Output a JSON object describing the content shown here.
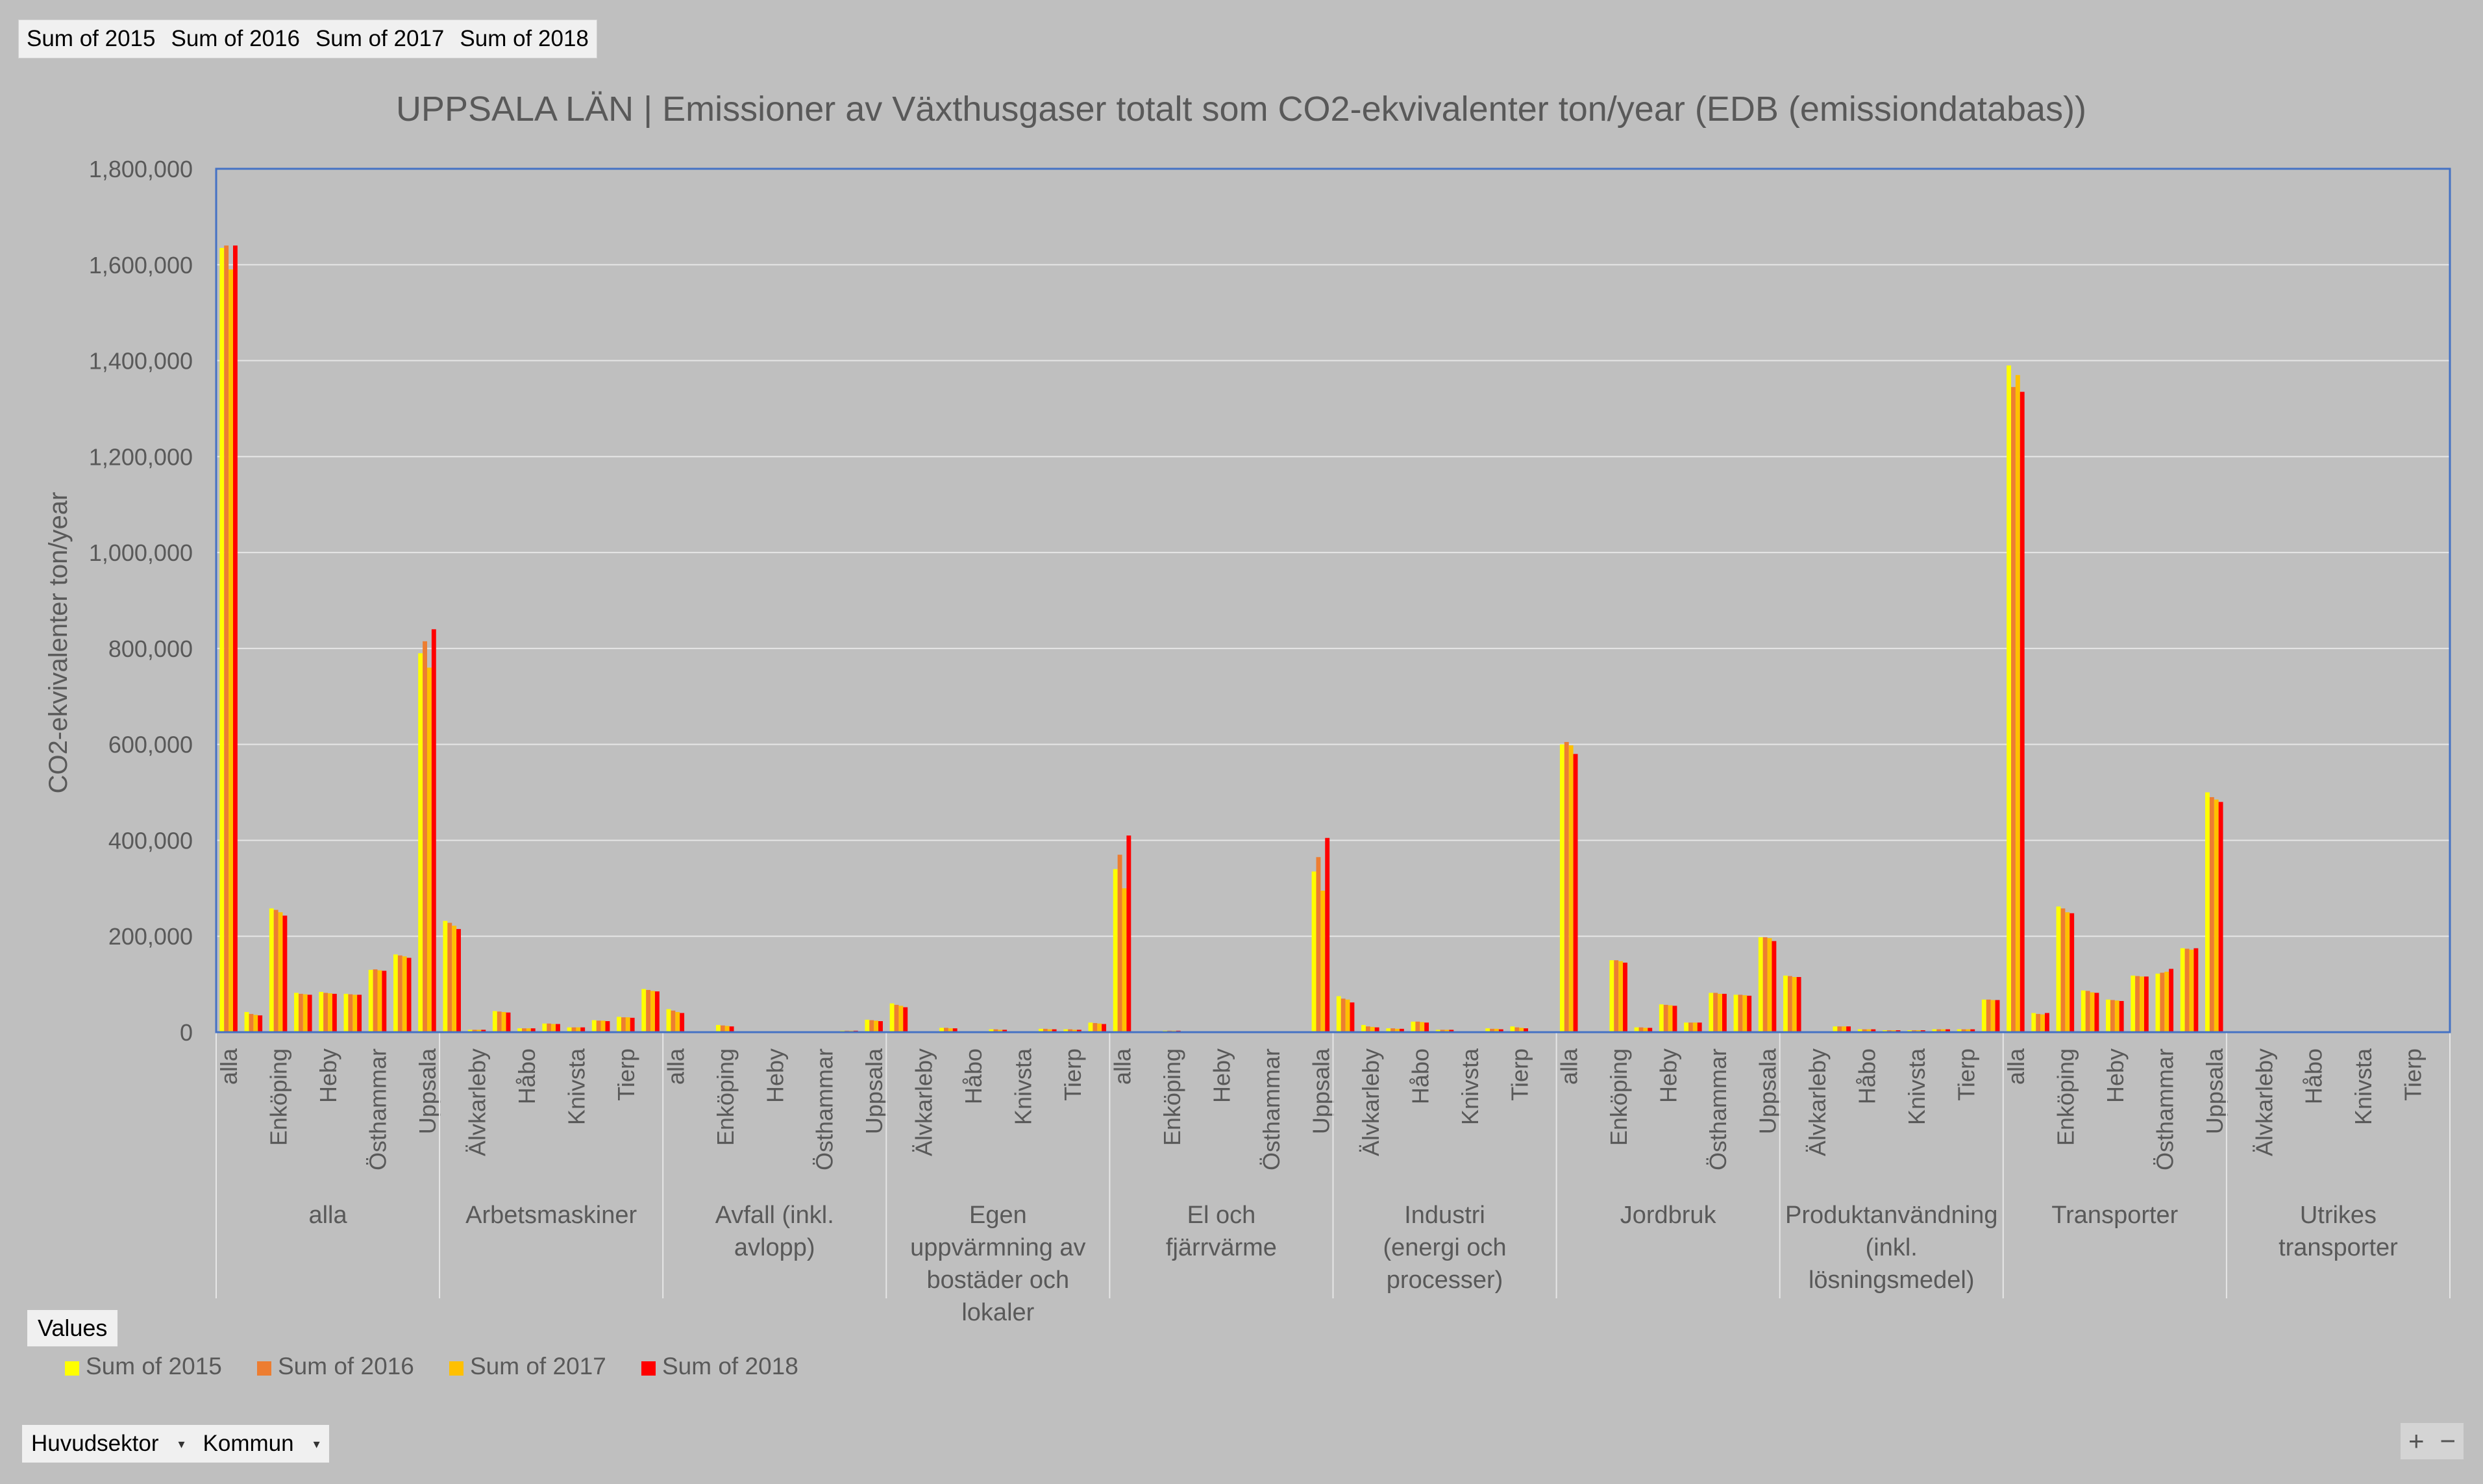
{
  "field_buttons": [
    "Sum of 2015",
    "Sum of 2016",
    "Sum of 2017",
    "Sum of 2018"
  ],
  "values_button": "Values",
  "axis_buttons": [
    {
      "label": "Huvudsektor",
      "dropdown": "▾"
    },
    {
      "label": "Kommun",
      "dropdown": "▾"
    }
  ],
  "zoom_controls": {
    "zoom_in": "+",
    "zoom_out": "−"
  },
  "chart_data": {
    "type": "bar",
    "title": "UPPSALA LÄN | Emissioner av Växthusgaser totalt som CO2-ekvivalenter ton/year (EDB (emissiondatabas))",
    "ylabel": "CO2-ekvivalenter ton/year",
    "xlabel": "",
    "ylim": [
      0,
      1800000
    ],
    "yticks": [
      "0",
      "200,000",
      "400,000",
      "600,000",
      "800,000",
      "1,000,000",
      "1,200,000",
      "1,400,000",
      "1,600,000",
      "1,800,000"
    ],
    "grid": true,
    "legend": "bottom-left",
    "colors": {
      "background": "#bfbfbf",
      "grid": "#e6e6e6",
      "axis_frame": "#4472c4",
      "text": "#595959"
    },
    "series": [
      {
        "name": "Sum of 2015",
        "color": "#ffff00"
      },
      {
        "name": "Sum of 2016",
        "color": "#ed7d31"
      },
      {
        "name": "Sum of 2017",
        "color": "#ffc000"
      },
      {
        "name": "Sum of 2018",
        "color": "#ff0000"
      }
    ],
    "groups": [
      {
        "label": "alla",
        "categories": [
          {
            "label": "alla",
            "values": [
              1635000,
              1640000,
              1590000,
              1640000
            ]
          },
          {
            "label": "",
            "values": [
              42000,
              38000,
              36000,
              35000
            ]
          },
          {
            "label": "Enköping",
            "values": [
              258000,
              255000,
              250000,
              243000
            ]
          },
          {
            "label": "",
            "values": [
              82000,
              80000,
              79000,
              78000
            ]
          },
          {
            "label": "Heby",
            "values": [
              84000,
              82000,
              81000,
              80000
            ]
          },
          {
            "label": "",
            "values": [
              80000,
              79000,
              78000,
              78000
            ]
          },
          {
            "label": "Östhammar",
            "values": [
              130000,
              131000,
              129000,
              128000
            ]
          },
          {
            "label": "",
            "values": [
              162000,
              160000,
              158000,
              155000
            ]
          },
          {
            "label": "Uppsala",
            "values": [
              790000,
              815000,
              760000,
              840000
            ]
          }
        ]
      },
      {
        "label": "Arbetsmaskiner",
        "categories": [
          {
            "label": "",
            "values": [
              232000,
              228000,
              222000,
              215000
            ]
          },
          {
            "label": "Älvkarleby",
            "values": [
              5000,
              5000,
              5000,
              5000
            ]
          },
          {
            "label": "",
            "values": [
              44000,
              43000,
              42000,
              41000
            ]
          },
          {
            "label": "Håbo",
            "values": [
              8000,
              8000,
              8000,
              8000
            ]
          },
          {
            "label": "",
            "values": [
              18000,
              18000,
              17000,
              17000
            ]
          },
          {
            "label": "Knivsta",
            "values": [
              10000,
              10000,
              10000,
              10000
            ]
          },
          {
            "label": "",
            "values": [
              25000,
              24000,
              24000,
              23000
            ]
          },
          {
            "label": "Tierp",
            "values": [
              32000,
              31000,
              31000,
              30000
            ]
          },
          {
            "label": "",
            "values": [
              90000,
              88000,
              86000,
              85000
            ]
          }
        ]
      },
      {
        "label": "Avfall (inkl. avlopp)",
        "categories": [
          {
            "label": "alla",
            "values": [
              48000,
              45000,
              42000,
              40000
            ]
          },
          {
            "label": "",
            "values": [
              1000,
              1000,
              1000,
              1000
            ]
          },
          {
            "label": "Enköping",
            "values": [
              15000,
              14000,
              13000,
              12000
            ]
          },
          {
            "label": "",
            "values": [
              0,
              0,
              0,
              0
            ]
          },
          {
            "label": "Heby",
            "values": [
              0,
              0,
              0,
              0
            ]
          },
          {
            "label": "",
            "values": [
              0,
              0,
              0,
              0
            ]
          },
          {
            "label": "Östhammar",
            "values": [
              1000,
              1000,
              1000,
              1000
            ]
          },
          {
            "label": "",
            "values": [
              3000,
              3000,
              3000,
              3000
            ]
          },
          {
            "label": "Uppsala",
            "values": [
              26000,
              25000,
              24000,
              23000
            ]
          }
        ]
      },
      {
        "label": "Egen uppvärmning av bostäder och lokaler",
        "categories": [
          {
            "label": "",
            "values": [
              60000,
              57000,
              55000,
              52000
            ]
          },
          {
            "label": "Älvkarleby",
            "values": [
              1000,
              1000,
              1000,
              1000
            ]
          },
          {
            "label": "",
            "values": [
              9000,
              9000,
              8000,
              8000
            ]
          },
          {
            "label": "Håbo",
            "values": [
              2000,
              2000,
              2000,
              2000
            ]
          },
          {
            "label": "",
            "values": [
              6000,
              6000,
              5000,
              5000
            ]
          },
          {
            "label": "Knivsta",
            "values": [
              2000,
              2000,
              2000,
              2000
            ]
          },
          {
            "label": "",
            "values": [
              7000,
              7000,
              6000,
              6000
            ]
          },
          {
            "label": "Tierp",
            "values": [
              6000,
              6000,
              5000,
              5000
            ]
          },
          {
            "label": "",
            "values": [
              20000,
              19000,
              18000,
              17000
            ]
          }
        ]
      },
      {
        "label": "El och fjärrvärme",
        "categories": [
          {
            "label": "alla",
            "values": [
              340000,
              370000,
              300000,
              410000
            ]
          },
          {
            "label": "",
            "values": [
              0,
              0,
              0,
              0
            ]
          },
          {
            "label": "Enköping",
            "values": [
              3000,
              3000,
              3000,
              3000
            ]
          },
          {
            "label": "",
            "values": [
              0,
              0,
              0,
              0
            ]
          },
          {
            "label": "Heby",
            "values": [
              0,
              0,
              0,
              0
            ]
          },
          {
            "label": "",
            "values": [
              0,
              0,
              0,
              0
            ]
          },
          {
            "label": "Östhammar",
            "values": [
              0,
              0,
              0,
              0
            ]
          },
          {
            "label": "",
            "values": [
              0,
              0,
              0,
              0
            ]
          },
          {
            "label": "Uppsala",
            "values": [
              335000,
              365000,
              295000,
              405000
            ]
          }
        ]
      },
      {
        "label": "Industri (energi och processer)",
        "categories": [
          {
            "label": "",
            "values": [
              75000,
              70000,
              68000,
              62000
            ]
          },
          {
            "label": "Älvkarleby",
            "values": [
              15000,
              12000,
              11000,
              10000
            ]
          },
          {
            "label": "",
            "values": [
              8000,
              8000,
              7000,
              7000
            ]
          },
          {
            "label": "Håbo",
            "values": [
              22000,
              22000,
              21000,
              20000
            ]
          },
          {
            "label": "",
            "values": [
              5000,
              5000,
              5000,
              5000
            ]
          },
          {
            "label": "Knivsta",
            "values": [
              1000,
              1000,
              1000,
              1000
            ]
          },
          {
            "label": "",
            "values": [
              8000,
              7000,
              7000,
              6000
            ]
          },
          {
            "label": "Tierp",
            "values": [
              12000,
              10000,
              9000,
              8000
            ]
          },
          {
            "label": "",
            "values": [
              0,
              0,
              0,
              0
            ]
          }
        ]
      },
      {
        "label": "Jordbruk",
        "categories": [
          {
            "label": "alla",
            "values": [
              600000,
              605000,
              598000,
              580000
            ]
          },
          {
            "label": "",
            "values": [
              0,
              0,
              0,
              0
            ]
          },
          {
            "label": "Enköping",
            "values": [
              150000,
              150000,
              148000,
              145000
            ]
          },
          {
            "label": "",
            "values": [
              10000,
              10000,
              9000,
              9000
            ]
          },
          {
            "label": "Heby",
            "values": [
              58000,
              57000,
              56000,
              55000
            ]
          },
          {
            "label": "",
            "values": [
              20000,
              20000,
              20000,
              20000
            ]
          },
          {
            "label": "Östhammar",
            "values": [
              82000,
              82000,
              80000,
              80000
            ]
          },
          {
            "label": "",
            "values": [
              78000,
              78000,
              77000,
              76000
            ]
          },
          {
            "label": "Uppsala",
            "values": [
              198000,
              198000,
              196000,
              190000
            ]
          }
        ]
      },
      {
        "label": "Produktanvändning (inkl. lösningsmedel)",
        "categories": [
          {
            "label": "",
            "values": [
              118000,
              117000,
              115000,
              115000
            ]
          },
          {
            "label": "Älvkarleby",
            "values": [
              2000,
              2000,
              2000,
              2000
            ]
          },
          {
            "label": "",
            "values": [
              12000,
              12000,
              12000,
              12000
            ]
          },
          {
            "label": "Håbo",
            "values": [
              6000,
              6000,
              6000,
              6000
            ]
          },
          {
            "label": "",
            "values": [
              4000,
              4000,
              4000,
              4000
            ]
          },
          {
            "label": "Knivsta",
            "values": [
              4000,
              4000,
              4000,
              4000
            ]
          },
          {
            "label": "",
            "values": [
              6000,
              6000,
              6000,
              6000
            ]
          },
          {
            "label": "Tierp",
            "values": [
              6000,
              6000,
              6000,
              6000
            ]
          },
          {
            "label": "",
            "values": [
              68000,
              68000,
              67000,
              67000
            ]
          }
        ]
      },
      {
        "label": "Transporter",
        "categories": [
          {
            "label": "alla",
            "values": [
              1390000,
              1345000,
              1370000,
              1335000
            ]
          },
          {
            "label": "",
            "values": [
              40000,
              38000,
              37000,
              40000
            ]
          },
          {
            "label": "Enköping",
            "values": [
              262000,
              258000,
              250000,
              248000
            ]
          },
          {
            "label": "",
            "values": [
              87000,
              86000,
              83000,
              82000
            ]
          },
          {
            "label": "Heby",
            "values": [
              68000,
              67000,
              66000,
              65000
            ]
          },
          {
            "label": "",
            "values": [
              118000,
              117000,
              116000,
              116000
            ]
          },
          {
            "label": "Östhammar",
            "values": [
              122000,
              124000,
              126000,
              132000
            ]
          },
          {
            "label": "",
            "values": [
              175000,
              174000,
              172000,
              175000
            ]
          },
          {
            "label": "Uppsala",
            "values": [
              500000,
              490000,
              485000,
              480000
            ]
          }
        ]
      },
      {
        "label": "Utrikes transporter",
        "categories": [
          {
            "label": "",
            "values": [
              0,
              0,
              0,
              0
            ]
          },
          {
            "label": "Älvkarleby",
            "values": [
              0,
              0,
              0,
              0
            ]
          },
          {
            "label": "",
            "values": [
              0,
              0,
              0,
              0
            ]
          },
          {
            "label": "Håbo",
            "values": [
              0,
              0,
              0,
              0
            ]
          },
          {
            "label": "",
            "values": [
              0,
              0,
              0,
              0
            ]
          },
          {
            "label": "Knivsta",
            "values": [
              0,
              0,
              0,
              0
            ]
          },
          {
            "label": "",
            "values": [
              0,
              0,
              0,
              0
            ]
          },
          {
            "label": "Tierp",
            "values": [
              0,
              0,
              0,
              0
            ]
          },
          {
            "label": "",
            "values": [
              0,
              0,
              0,
              0
            ]
          }
        ]
      }
    ]
  }
}
